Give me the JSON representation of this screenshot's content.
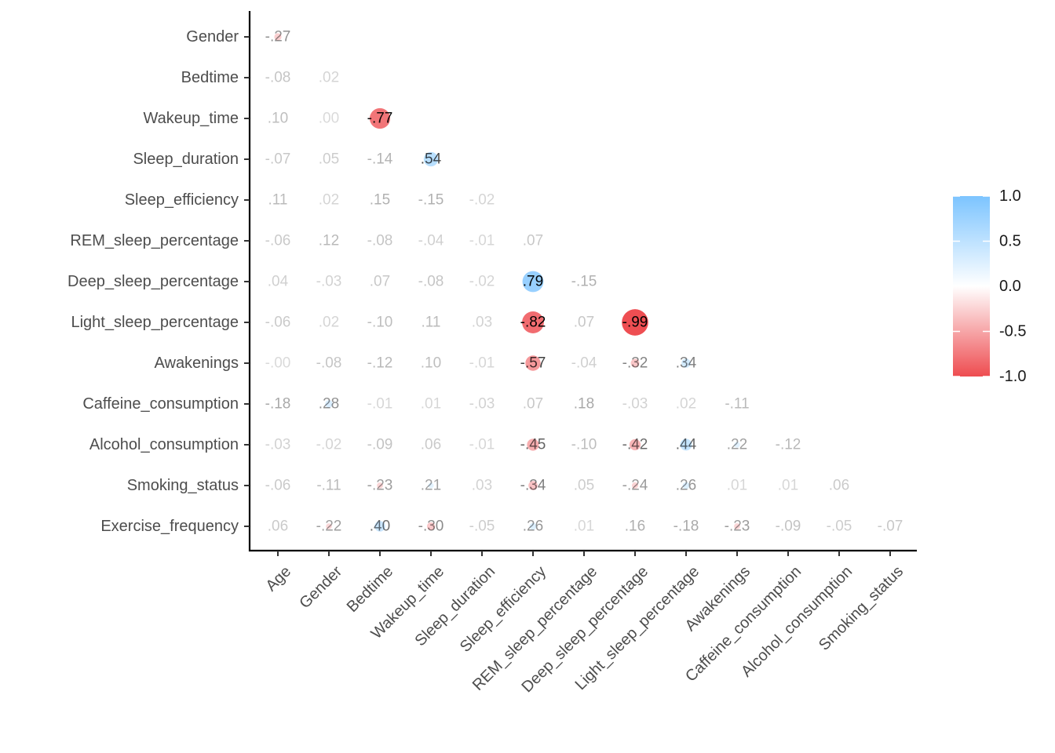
{
  "chart_data": {
    "type": "heatmap",
    "title": "",
    "xlabel": "",
    "ylabel": "",
    "x_labels": [
      "Age",
      "Gender",
      "Bedtime",
      "Wakeup_time",
      "Sleep_duration",
      "Sleep_efficiency",
      "REM_sleep_percentage",
      "Deep_sleep_percentage",
      "Light_sleep_percentage",
      "Awakenings",
      "Caffeine_consumption",
      "Alcohol_consumption",
      "Smoking_status"
    ],
    "y_labels": [
      "Gender",
      "Bedtime",
      "Wakeup_time",
      "Sleep_duration",
      "Sleep_efficiency",
      "REM_sleep_percentage",
      "Deep_sleep_percentage",
      "Light_sleep_percentage",
      "Awakenings",
      "Caffeine_consumption",
      "Alcohol_consumption",
      "Smoking_status",
      "Exercise_frequency"
    ],
    "values": [
      [
        -0.27
      ],
      [
        -0.08,
        0.02
      ],
      [
        0.1,
        0.0,
        -0.77
      ],
      [
        -0.07,
        0.05,
        -0.14,
        0.54
      ],
      [
        0.11,
        0.02,
        0.15,
        -0.15,
        -0.02
      ],
      [
        -0.06,
        0.12,
        -0.08,
        -0.04,
        -0.01,
        0.07
      ],
      [
        0.04,
        -0.03,
        0.07,
        -0.08,
        -0.02,
        0.79,
        -0.15
      ],
      [
        -0.06,
        0.02,
        -0.1,
        0.11,
        0.03,
        -0.82,
        0.07,
        -0.99
      ],
      [
        -0.0,
        -0.08,
        -0.12,
        0.1,
        -0.01,
        -0.57,
        -0.04,
        -0.32,
        0.34
      ],
      [
        -0.18,
        0.28,
        -0.01,
        0.01,
        -0.03,
        0.07,
        0.18,
        -0.03,
        0.02,
        -0.11
      ],
      [
        -0.03,
        -0.02,
        -0.09,
        0.06,
        -0.01,
        -0.45,
        -0.1,
        -0.42,
        0.44,
        0.22,
        -0.12
      ],
      [
        -0.06,
        -0.11,
        -0.23,
        0.21,
        0.03,
        -0.34,
        0.05,
        -0.24,
        0.26,
        0.01,
        0.01,
        0.06
      ],
      [
        0.06,
        -0.22,
        0.4,
        -0.3,
        -0.05,
        0.26,
        0.01,
        0.16,
        -0.18,
        -0.23,
        -0.09,
        -0.05,
        -0.07
      ]
    ],
    "cell_labels": [
      [
        "-.27"
      ],
      [
        "-.08",
        ".02"
      ],
      [
        ".10",
        ".00",
        "-.77"
      ],
      [
        "-.07",
        ".05",
        "-.14",
        ".54"
      ],
      [
        ".11",
        ".02",
        ".15",
        "-.15",
        "-.02"
      ],
      [
        "-.06",
        ".12",
        "-.08",
        "-.04",
        "-.01",
        ".07"
      ],
      [
        ".04",
        "-.03",
        ".07",
        "-.08",
        "-.02",
        ".79",
        "-.15"
      ],
      [
        "-.06",
        ".02",
        "-.10",
        ".11",
        ".03",
        "-.82",
        ".07",
        "-.99"
      ],
      [
        "-.00",
        "-.08",
        "-.12",
        ".10",
        "-.01",
        "-.57",
        "-.04",
        "-.32",
        ".34"
      ],
      [
        "-.18",
        ".28",
        "-.01",
        ".01",
        "-.03",
        ".07",
        ".18",
        "-.03",
        ".02",
        "-.11"
      ],
      [
        "-.03",
        "-.02",
        "-.09",
        ".06",
        "-.01",
        "-.45",
        "-.10",
        "-.42",
        ".44",
        ".22",
        "-.12"
      ],
      [
        "-.06",
        "-.11",
        "-.23",
        ".21",
        ".03",
        "-.34",
        ".05",
        "-.24",
        ".26",
        ".01",
        ".01",
        ".06"
      ],
      [
        ".06",
        "-.22",
        ".40",
        "-.30",
        "-.05",
        ".26",
        ".01",
        ".16",
        "-.18",
        "-.23",
        "-.09",
        "-.05",
        "-.07"
      ]
    ],
    "size_threshold": 0.2,
    "color_scale": {
      "range": [
        -1.0,
        1.0
      ],
      "low_color": "#ee4c50",
      "mid_color": "#ffffff",
      "high_color": "#7cc4ff"
    },
    "legend": {
      "placement": "right",
      "ticks": [
        "1.0",
        "0.5",
        "0.0",
        "-0.5",
        "-1.0"
      ],
      "tick_values": [
        1.0,
        0.5,
        0.0,
        -0.5,
        -1.0
      ]
    }
  }
}
